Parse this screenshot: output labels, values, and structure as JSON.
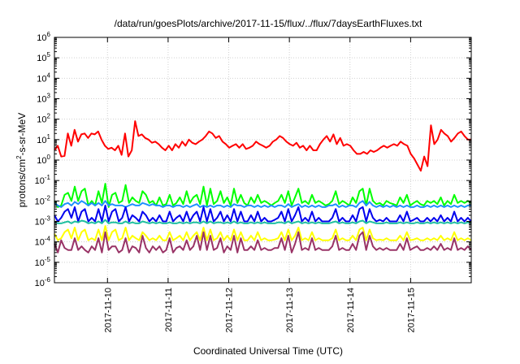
{
  "chart_data": {
    "type": "line",
    "title": "/data/run/goesPlots/archive/2017-11-15/flux/../flux/7daysEarthFluxes.txt",
    "xlabel": "Coordinated Universal Time (UTC)",
    "ylabel": "protons/cm²-s-sr-MeV",
    "ylabel_parts": {
      "before": "protons/cm",
      "sup": "2",
      "after": "-s-sr-MeV"
    },
    "y_scale": "log",
    "ylim": [
      1e-06,
      1000000.0
    ],
    "y_tick_labels": [
      {
        "base": "10",
        "exp": "-6",
        "value": 1e-06
      },
      {
        "base": "10",
        "exp": "-5",
        "value": 1e-05
      },
      {
        "base": "10",
        "exp": "-4",
        "value": 0.0001
      },
      {
        "base": "10",
        "exp": "-3",
        "value": 0.001
      },
      {
        "base": "10",
        "exp": "-2",
        "value": 0.01
      },
      {
        "base": "10",
        "exp": "-1",
        "value": 0.1
      },
      {
        "base": "10",
        "exp": "0",
        "value": 1
      },
      {
        "base": "10",
        "exp": "1",
        "value": 10
      },
      {
        "base": "10",
        "exp": "2",
        "value": 100
      },
      {
        "base": "10",
        "exp": "3",
        "value": 1000
      },
      {
        "base": "10",
        "exp": "4",
        "value": 10000
      },
      {
        "base": "10",
        "exp": "5",
        "value": 100000
      },
      {
        "base": "10",
        "exp": "6",
        "value": 1000000
      }
    ],
    "xlim": [
      "2017-11-09 03:00",
      "2017-11-16 00:00"
    ],
    "x_tick_labels": [
      "2017-11-10",
      "2017-11-11",
      "2017-11-12",
      "2017-11-13",
      "2017-11-14",
      "2017-11-15"
    ],
    "x_tick_values": [
      "2017-11-10 00:00",
      "2017-11-11 00:00",
      "2017-11-12 00:00",
      "2017-11-13 00:00",
      "2017-11-14 00:00",
      "2017-11-15 00:00"
    ],
    "grid": true,
    "series": [
      {
        "color": "#ff0000",
        "values": [
          3,
          5,
          1.5,
          1.6,
          20,
          5,
          30,
          8,
          18,
          20,
          12,
          20,
          18,
          25,
          10,
          5,
          3.5,
          4,
          3,
          5,
          1.8,
          20,
          1.5,
          3,
          80,
          15,
          18,
          12,
          10,
          7,
          8,
          6,
          4,
          3,
          5,
          3,
          6,
          4,
          8,
          5,
          10,
          7,
          6,
          8,
          10,
          15,
          25,
          20,
          12,
          15,
          8,
          6,
          4,
          5,
          6,
          4,
          6,
          3.5,
          4,
          5,
          8,
          6,
          5,
          4,
          5,
          8,
          10,
          15,
          12,
          8,
          6,
          5,
          7,
          4,
          5,
          3,
          5,
          3,
          3,
          6,
          10,
          15,
          8,
          18,
          6,
          12,
          5,
          6,
          5,
          3,
          2,
          2,
          2.5,
          2,
          3,
          2.5,
          3,
          4,
          5,
          4,
          5,
          6,
          5,
          8,
          6,
          5,
          2,
          1.2,
          0.6,
          0.3,
          1.5,
          0.5,
          50,
          6,
          10,
          30,
          20,
          15,
          8,
          12,
          20,
          25,
          15,
          10,
          10
        ]
      },
      {
        "color": "#00ff00",
        "values": [
          0.01,
          0.005,
          0.006,
          0.02,
          0.025,
          0.01,
          0.05,
          0.01,
          0.03,
          0.04,
          0.006,
          0.01,
          0.006,
          0.03,
          0.008,
          0.07,
          0.005,
          0.02,
          0.025,
          0.008,
          0.01,
          0.06,
          0.008,
          0.015,
          0.01,
          0.008,
          0.03,
          0.02,
          0.008,
          0.01,
          0.006,
          0.015,
          0.006,
          0.007,
          0.02,
          0.006,
          0.008,
          0.015,
          0.007,
          0.03,
          0.008,
          0.015,
          0.02,
          0.007,
          0.05,
          0.006,
          0.04,
          0.007,
          0.01,
          0.03,
          0.008,
          0.015,
          0.006,
          0.04,
          0.008,
          0.02,
          0.008,
          0.006,
          0.015,
          0.008,
          0.02,
          0.008,
          0.01,
          0.008,
          0.006,
          0.008,
          0.01,
          0.02,
          0.008,
          0.03,
          0.006,
          0.015,
          0.04,
          0.008,
          0.01,
          0.007,
          0.02,
          0.008,
          0.01,
          0.008,
          0.006,
          0.007,
          0.01,
          0.03,
          0.007,
          0.01,
          0.008,
          0.006,
          0.015,
          0.008,
          0.03,
          0.04,
          0.006,
          0.04,
          0.01,
          0.007,
          0.008,
          0.006,
          0.01,
          0.008,
          0.007,
          0.006,
          0.015,
          0.008,
          0.02,
          0.006,
          0.008,
          0.01,
          0.007,
          0.006,
          0.01,
          0.008,
          0.01,
          0.007,
          0.015,
          0.006,
          0.01,
          0.007,
          0.02,
          0.008,
          0.01,
          0.008,
          0.01,
          0.008
        ]
      },
      {
        "color": "#1e90ff",
        "values": [
          0.008,
          0.006,
          0.005,
          0.007,
          0.008,
          0.006,
          0.009,
          0.007,
          0.01,
          0.008,
          0.006,
          0.008,
          0.006,
          0.008,
          0.006,
          0.01,
          0.006,
          0.007,
          0.006,
          0.006,
          0.006,
          0.005,
          0.006,
          0.007,
          0.006,
          0.006,
          0.008,
          0.007,
          0.006,
          0.007,
          0.006,
          0.006,
          0.005,
          0.006,
          0.006,
          0.005,
          0.006,
          0.006,
          0.005,
          0.006,
          0.005,
          0.006,
          0.007,
          0.005,
          0.006,
          0.005,
          0.006,
          0.005,
          0.006,
          0.006,
          0.005,
          0.006,
          0.005,
          0.007,
          0.006,
          0.006,
          0.005,
          0.006,
          0.006,
          0.005,
          0.006,
          0.005,
          0.006,
          0.005,
          0.006,
          0.005,
          0.006,
          0.006,
          0.005,
          0.007,
          0.005,
          0.006,
          0.007,
          0.005,
          0.006,
          0.005,
          0.006,
          0.005,
          0.006,
          0.005,
          0.005,
          0.006,
          0.006,
          0.007,
          0.005,
          0.006,
          0.005,
          0.006,
          0.006,
          0.005,
          0.008,
          0.01,
          0.006,
          0.009,
          0.006,
          0.005,
          0.006,
          0.005,
          0.006,
          0.005,
          0.006,
          0.005,
          0.006,
          0.005,
          0.006,
          0.005,
          0.005,
          0.006,
          0.005,
          0.005,
          0.006,
          0.005,
          0.006,
          0.005,
          0.006,
          0.005,
          0.006,
          0.005,
          0.006,
          0.005,
          0.006,
          0.005,
          0.006,
          0.006
        ]
      },
      {
        "color": "#0000ee",
        "values": [
          0.002,
          0.001,
          0.0015,
          0.003,
          0.004,
          0.0015,
          0.005,
          0.001,
          0.003,
          0.004,
          0.001,
          0.0015,
          0.001,
          0.004,
          0.001,
          0.006,
          0.001,
          0.003,
          0.004,
          0.001,
          0.0015,
          0.005,
          0.001,
          0.002,
          0.0015,
          0.001,
          0.003,
          0.002,
          0.001,
          0.0015,
          0.001,
          0.002,
          0.001,
          0.001,
          0.003,
          0.001,
          0.0015,
          0.002,
          0.001,
          0.003,
          0.001,
          0.002,
          0.003,
          0.001,
          0.005,
          0.001,
          0.004,
          0.001,
          0.0015,
          0.003,
          0.001,
          0.002,
          0.001,
          0.004,
          0.001,
          0.003,
          0.001,
          0.001,
          0.002,
          0.001,
          0.003,
          0.001,
          0.0015,
          0.001,
          0.001,
          0.0012,
          0.0015,
          0.003,
          0.001,
          0.004,
          0.001,
          0.002,
          0.005,
          0.001,
          0.0015,
          0.001,
          0.003,
          0.001,
          0.0015,
          0.001,
          0.001,
          0.001,
          0.0015,
          0.004,
          0.001,
          0.0015,
          0.001,
          0.001,
          0.002,
          0.001,
          0.004,
          0.005,
          0.001,
          0.004,
          0.0015,
          0.001,
          0.0012,
          0.001,
          0.0015,
          0.001,
          0.001,
          0.001,
          0.002,
          0.001,
          0.003,
          0.001,
          0.0012,
          0.0015,
          0.001,
          0.001,
          0.0015,
          0.001,
          0.0015,
          0.001,
          0.002,
          0.001,
          0.0015,
          0.001,
          0.003,
          0.001,
          0.0015,
          0.001,
          0.0015,
          0.001
        ]
      },
      {
        "color": "#20c0a0",
        "values": [
          0.0009,
          0.0008,
          0.0008,
          0.0009,
          0.001,
          0.0008,
          0.001,
          0.0009,
          0.0011,
          0.001,
          0.0008,
          0.0009,
          0.0008,
          0.001,
          0.0008,
          0.0012,
          0.0008,
          0.0009,
          0.0009,
          0.0008,
          0.0008,
          0.001,
          0.0008,
          0.0009,
          0.0008,
          0.0008,
          0.001,
          0.0009,
          0.0008,
          0.0009,
          0.0008,
          0.0009,
          0.0008,
          0.0008,
          0.0009,
          0.0008,
          0.0008,
          0.0009,
          0.0008,
          0.0009,
          0.0008,
          0.0009,
          0.0009,
          0.0008,
          0.001,
          0.0008,
          0.001,
          0.0008,
          0.0009,
          0.0009,
          0.0008,
          0.0009,
          0.0008,
          0.001,
          0.0008,
          0.0009,
          0.0008,
          0.0008,
          0.0009,
          0.0008,
          0.0009,
          0.0008,
          0.0009,
          0.0008,
          0.0008,
          0.0008,
          0.0009,
          0.0009,
          0.0008,
          0.001,
          0.0008,
          0.0009,
          0.001,
          0.0008,
          0.0009,
          0.0008,
          0.0009,
          0.0008,
          0.0009,
          0.0008,
          0.0008,
          0.0008,
          0.0009,
          0.001,
          0.0008,
          0.0009,
          0.0008,
          0.0008,
          0.0009,
          0.0008,
          0.001,
          0.0011,
          0.0008,
          0.001,
          0.0009,
          0.0008,
          0.0008,
          0.0008,
          0.0009,
          0.0008,
          0.0008,
          0.0008,
          0.0009,
          0.0008,
          0.0009,
          0.0008,
          0.0008,
          0.0009,
          0.0008,
          0.0008,
          0.0009,
          0.0008,
          0.0009,
          0.0008,
          0.0009,
          0.0008,
          0.0009,
          0.0008,
          0.0009,
          0.0008,
          0.0009,
          0.0008,
          0.0009,
          0.0008
        ]
      },
      {
        "color": "#ffff00",
        "values": [
          0.00025,
          0.00012,
          0.00015,
          0.0003,
          0.0004,
          0.00015,
          0.0005,
          0.00012,
          0.0003,
          0.0004,
          0.00012,
          0.00015,
          0.00012,
          0.0004,
          0.00012,
          0.0006,
          0.00012,
          0.0003,
          0.0004,
          0.00012,
          0.00015,
          0.0005,
          0.00012,
          0.0002,
          0.00015,
          0.00012,
          0.0003,
          0.0002,
          0.00012,
          0.00015,
          0.00012,
          0.0002,
          0.00012,
          0.00012,
          0.0003,
          0.00012,
          0.00015,
          0.0002,
          0.00012,
          0.0003,
          0.00012,
          0.0002,
          0.0003,
          0.00012,
          0.0005,
          0.00012,
          0.0004,
          0.00012,
          0.00015,
          0.0003,
          0.00012,
          0.0002,
          0.00012,
          0.0004,
          0.00012,
          0.0003,
          0.00012,
          0.00012,
          0.0002,
          0.00012,
          0.0003,
          0.00012,
          0.00015,
          0.00012,
          0.00012,
          0.00013,
          0.00015,
          0.0003,
          0.00012,
          0.0004,
          0.00012,
          0.0002,
          0.0005,
          0.00012,
          0.00015,
          0.00012,
          0.0003,
          0.00012,
          0.00015,
          0.00012,
          0.00012,
          0.00012,
          0.00015,
          0.0004,
          0.00012,
          0.00015,
          0.00012,
          0.00012,
          0.0002,
          0.00012,
          0.0004,
          0.0005,
          0.00012,
          0.0004,
          0.00015,
          0.00012,
          0.00013,
          0.00012,
          0.00015,
          0.00012,
          0.00012,
          0.00012,
          0.0002,
          0.00012,
          0.0003,
          0.00012,
          0.00013,
          0.00015,
          0.00012,
          0.00012,
          0.00015,
          0.00012,
          0.00015,
          0.00012,
          0.0002,
          0.00012,
          0.00015,
          0.00012,
          0.0003,
          0.00012,
          0.00015,
          0.00012,
          0.00015,
          0.00012
        ]
      },
      {
        "color": "#993366",
        "values": [
          8e-05,
          3e-05,
          0.00012,
          5e-05,
          4e-05,
          4e-05,
          0.00015,
          4e-05,
          6e-05,
          4e-05,
          3e-05,
          6e-05,
          4e-05,
          0.00015,
          3e-05,
          0.0003,
          4e-05,
          6e-05,
          6e-05,
          3e-05,
          4e-05,
          0.00015,
          3e-05,
          6e-05,
          5e-05,
          3e-05,
          0.0002,
          5e-05,
          3e-05,
          6e-05,
          4e-05,
          6e-05,
          3e-05,
          4e-05,
          0.00015,
          3e-05,
          5e-05,
          6e-05,
          4e-05,
          0.00012,
          4e-05,
          6e-05,
          0.0002,
          4e-05,
          0.0003,
          4e-05,
          0.0002,
          4e-05,
          5e-05,
          0.00015,
          3e-05,
          6e-05,
          4e-05,
          0.0002,
          3e-05,
          0.00015,
          4e-05,
          4e-05,
          6e-05,
          4e-05,
          0.00012,
          4e-05,
          5e-05,
          4e-05,
          4e-05,
          5e-05,
          5e-05,
          0.00015,
          4e-05,
          0.0002,
          3e-05,
          8e-05,
          0.0003,
          4e-05,
          5e-05,
          4e-05,
          0.00015,
          4e-05,
          5e-05,
          4e-05,
          4e-05,
          4e-05,
          6e-05,
          0.0002,
          4e-05,
          5e-05,
          4e-05,
          4e-05,
          8e-05,
          4e-05,
          0.0002,
          0.0003,
          4e-05,
          0.0002,
          6e-05,
          4e-05,
          5e-05,
          4e-05,
          5e-05,
          4e-05,
          4e-05,
          4e-05,
          8e-05,
          4e-05,
          0.00015,
          4e-05,
          5e-05,
          6e-05,
          4e-05,
          4e-05,
          5e-05,
          4e-05,
          6e-05,
          4e-05,
          8e-05,
          4e-05,
          5e-05,
          4e-05,
          0.00015,
          4e-05,
          5e-05,
          4e-05,
          6e-05,
          4e-05
        ]
      }
    ]
  }
}
